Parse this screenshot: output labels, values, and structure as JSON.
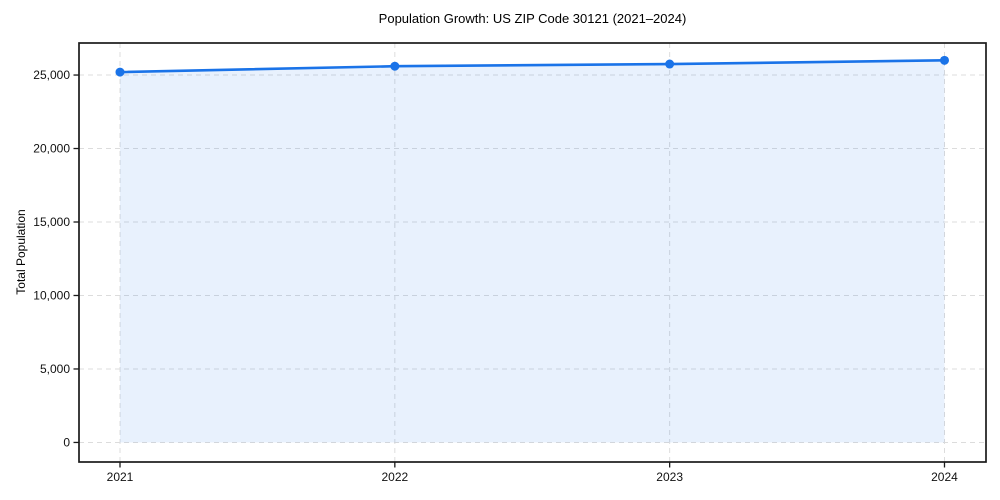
{
  "figure": {
    "background": "#ffffff"
  },
  "chart_data": {
    "type": "line",
    "title": "Population Growth: US ZIP Code 30121 (2021–2024)",
    "xlabel": "",
    "ylabel": "Total Population",
    "x": [
      "2021",
      "2022",
      "2023",
      "2024"
    ],
    "series": [
      {
        "name": "Total Population",
        "values": [
          25200,
          25600,
          25750,
          26000
        ]
      }
    ],
    "area_fill": true,
    "marker": "circle",
    "grid": true,
    "grid_style": "dashed",
    "legend_position": "none",
    "ylim": [
      -1330,
      27180
    ],
    "yticks": [
      0,
      5000,
      10000,
      15000,
      20000,
      25000
    ],
    "ytick_labels": [
      "0",
      "5,000",
      "10,000",
      "15,000",
      "20,000",
      "25,000"
    ],
    "xtick_labels": [
      "2021",
      "2022",
      "2023",
      "2024"
    ],
    "colors": {
      "line": "#1a73e8",
      "marker": "#1a73e8",
      "area": "rgba(26,115,232,0.10)",
      "grid": "#dcdcdc",
      "spine": "#1a1a1a",
      "tick": "#1a1a1a",
      "text": "#111111",
      "background": "#ffffff"
    }
  }
}
